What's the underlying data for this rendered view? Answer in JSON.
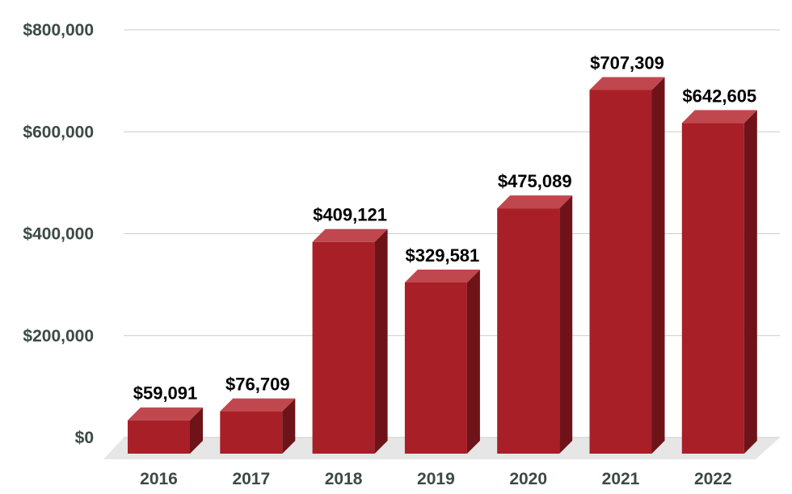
{
  "chart_data": {
    "type": "bar",
    "title": "",
    "xlabel": "",
    "ylabel": "",
    "categories": [
      "2016",
      "2017",
      "2018",
      "2019",
      "2020",
      "2021",
      "2022"
    ],
    "values": [
      59091,
      76709,
      409121,
      329581,
      475089,
      707309,
      642605
    ],
    "data_labels": [
      "$59,091",
      "$76,709",
      "$409,121",
      "$329,581",
      "$475,089",
      "$707,309",
      "$642,605"
    ],
    "ylim": [
      0,
      800000
    ],
    "yticks": [
      0,
      200000,
      400000,
      600000,
      800000
    ],
    "ytick_labels": [
      "$0",
      "$200,000",
      "$400,000",
      "$600,000",
      "$800,000"
    ],
    "grid": true,
    "legend": "none",
    "colors": {
      "bar_front": "#a81f27",
      "bar_top": "#c0474e",
      "bar_side": "#6e1419",
      "floor": "#e6e6e6",
      "gridline": "#cccccc",
      "axis_text": "#3b4a44",
      "label_text": "#000000"
    }
  }
}
